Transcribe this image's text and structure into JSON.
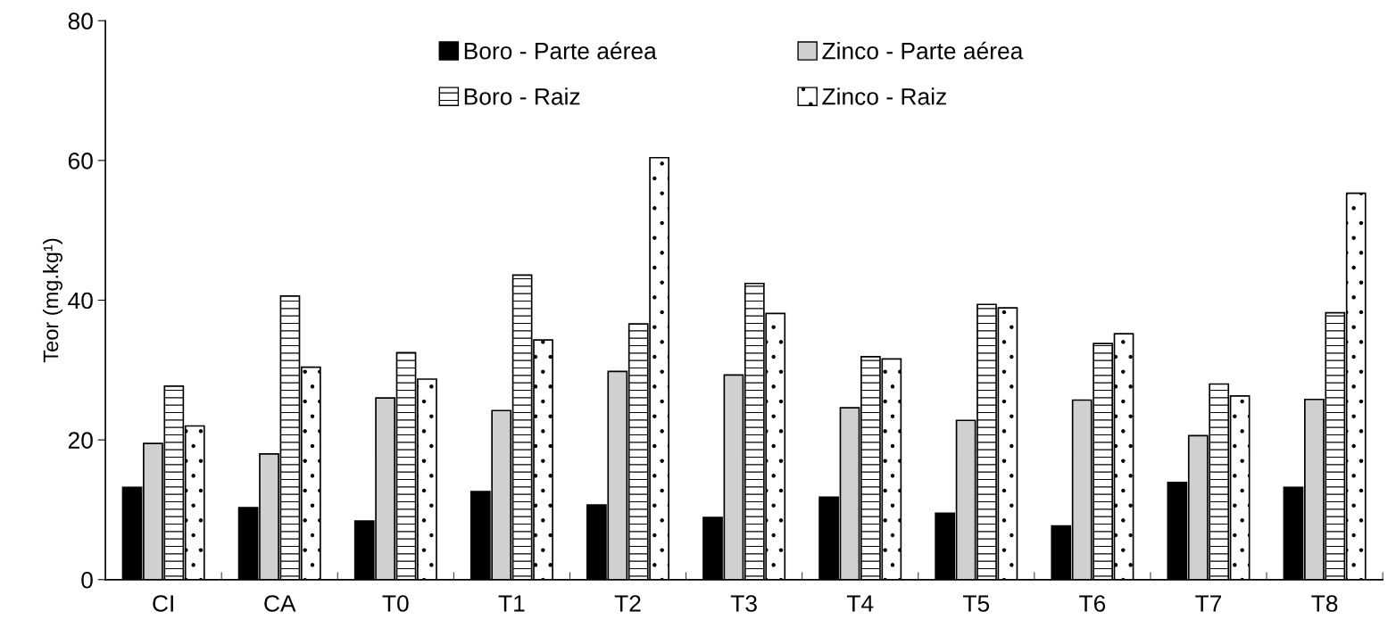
{
  "chart_data": {
    "type": "bar",
    "ylabel": "Teor (mg.kg¹)",
    "categories": [
      "CI",
      "CA",
      "T0",
      "T1",
      "T2",
      "T3",
      "T4",
      "T5",
      "T6",
      "T7",
      "T8"
    ],
    "series": [
      {
        "name": "Boro - Parte aérea",
        "color": "#000000",
        "values": [
          13.2,
          10.3,
          8.4,
          12.6,
          10.7,
          8.9,
          11.8,
          9.5,
          7.7,
          13.9,
          13.2
        ]
      },
      {
        "name": "Zinco - Parte aérea",
        "color": "#d0d0d0",
        "values": [
          19.5,
          18.0,
          26.0,
          24.2,
          29.8,
          29.3,
          24.6,
          22.8,
          25.7,
          20.6,
          25.8
        ]
      },
      {
        "name": "Boro - Raiz",
        "values": [
          27.7,
          40.6,
          32.5,
          43.6,
          36.6,
          42.4,
          31.9,
          39.4,
          33.8,
          28.0,
          38.2
        ]
      },
      {
        "name": "Zinco - Raiz",
        "values": [
          22.0,
          30.4,
          28.7,
          34.3,
          60.4,
          38.1,
          31.6,
          38.9,
          35.2,
          26.3,
          55.3
        ]
      }
    ],
    "ylim": [
      0,
      80
    ],
    "yticks": [
      0,
      20,
      40,
      60,
      80
    ],
    "grid": false,
    "legend": "top"
  }
}
